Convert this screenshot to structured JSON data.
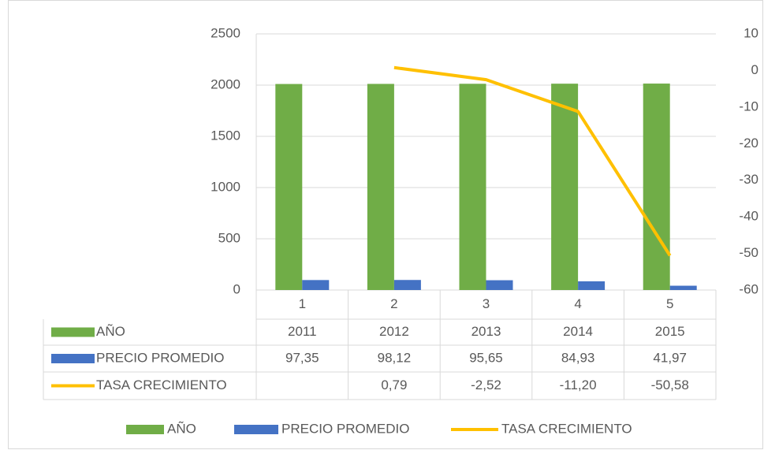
{
  "chart_data": {
    "type": "bar",
    "categories": [
      "1",
      "2",
      "3",
      "4",
      "5"
    ],
    "series": [
      {
        "name": "AÑO",
        "color": "#70ad47",
        "values": [
          2011,
          2012,
          2013,
          2014,
          2015
        ]
      },
      {
        "name": "PRECIO PROMEDIO",
        "color": "#4472c4",
        "values": [
          97.35,
          98.12,
          95.65,
          84.93,
          41.97
        ],
        "value_labels": [
          "97,35",
          "98,12",
          "95,65",
          "84,93",
          "41,97"
        ]
      },
      {
        "name": "TASA CRECIMIENTO",
        "color": "#ffc000",
        "type": "line",
        "axis": "y2",
        "values": [
          null,
          0.79,
          -2.52,
          -11.2,
          -50.58
        ],
        "value_labels": [
          null,
          "0,79",
          "-2,52",
          "-11,20",
          "-50,58"
        ]
      }
    ],
    "ylim": [
      0,
      2500
    ],
    "yticks": [
      0,
      500,
      1000,
      1500,
      2000,
      2500
    ],
    "y2lim": [
      -60,
      10
    ],
    "y2ticks": [
      -60,
      -50,
      -40,
      -30,
      -20,
      -10,
      0,
      10
    ],
    "grid": true,
    "legend": "bottom"
  }
}
